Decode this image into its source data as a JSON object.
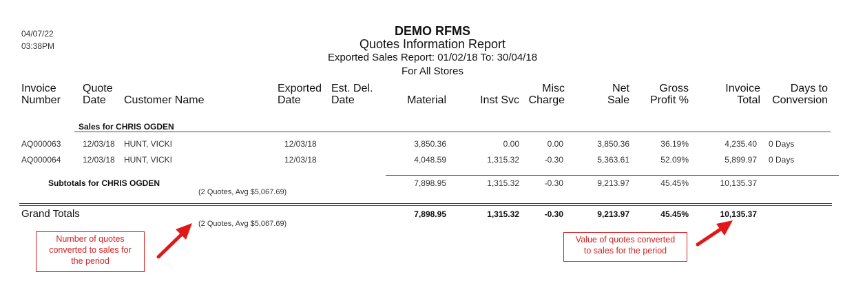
{
  "meta": {
    "date": "04/07/22",
    "time": "03:38PM"
  },
  "report": {
    "company": "DEMO RFMS",
    "title": "Quotes Information Report",
    "subtitle": "Exported Sales Report: 01/02/18   To: 30/04/18",
    "scope": "For All Stores"
  },
  "columns": {
    "invoice_number": [
      "Invoice",
      "Number"
    ],
    "quote_date": [
      "Quote",
      "Date"
    ],
    "customer_name": "Customer Name",
    "exported_date": [
      "Exported",
      "Date"
    ],
    "est_del_date": [
      "Est. Del.",
      "Date"
    ],
    "material": "Material",
    "inst_svc": "Inst Svc",
    "misc_charge": [
      "Misc",
      "Charge"
    ],
    "net_sale": [
      "Net",
      "Sale"
    ],
    "gross_profit": [
      "Gross",
      "Profit %"
    ],
    "invoice_total": [
      "Invoice",
      "Total"
    ],
    "days_to_conversion": [
      "Days to",
      "Conversion"
    ]
  },
  "group": {
    "title": "Sales for CHRIS OGDEN",
    "rows": [
      {
        "invoice": "AQ000063",
        "quote_date": "12/03/18",
        "customer": "HUNT, VICKI",
        "exported": "12/03/18",
        "material": "3,850.36",
        "inst_svc": "0.00",
        "misc": "0.00",
        "net_sale": "3,850.36",
        "gross_profit": "36.19%",
        "invoice_total": "4,235.40",
        "days": "0 Days"
      },
      {
        "invoice": "AQ000064",
        "quote_date": "12/03/18",
        "customer": "HUNT, VICKI",
        "exported": "12/03/18",
        "material": "4,048.59",
        "inst_svc": "1,315.32",
        "misc": "-0.30",
        "net_sale": "5,363.61",
        "gross_profit": "52.09%",
        "invoice_total": "5,899.97",
        "days": "0 Days"
      }
    ],
    "subtotal": {
      "label": "Subtotals for CHRIS OGDEN",
      "quotes_note": "(2 Quotes, Avg   $5,067.69)",
      "material": "7,898.95",
      "inst_svc": "1,315.32",
      "misc": "-0.30",
      "net_sale": "9,213.97",
      "gross_profit": "45.45%",
      "invoice_total": "10,135.37"
    }
  },
  "grand_totals": {
    "label": "Grand Totals",
    "quotes_note": "(2 Quotes, Avg   $5,067.69)",
    "material": "7,898.95",
    "inst_svc": "1,315.32",
    "misc": "-0.30",
    "net_sale": "9,213.97",
    "gross_profit": "45.45%",
    "invoice_total": "10,135.37"
  },
  "annotations": {
    "left": [
      "Number of quotes",
      "converted to sales for",
      "the period"
    ],
    "right": [
      "Value of quotes converted",
      "to sales for the period"
    ],
    "color": "#d42020"
  }
}
